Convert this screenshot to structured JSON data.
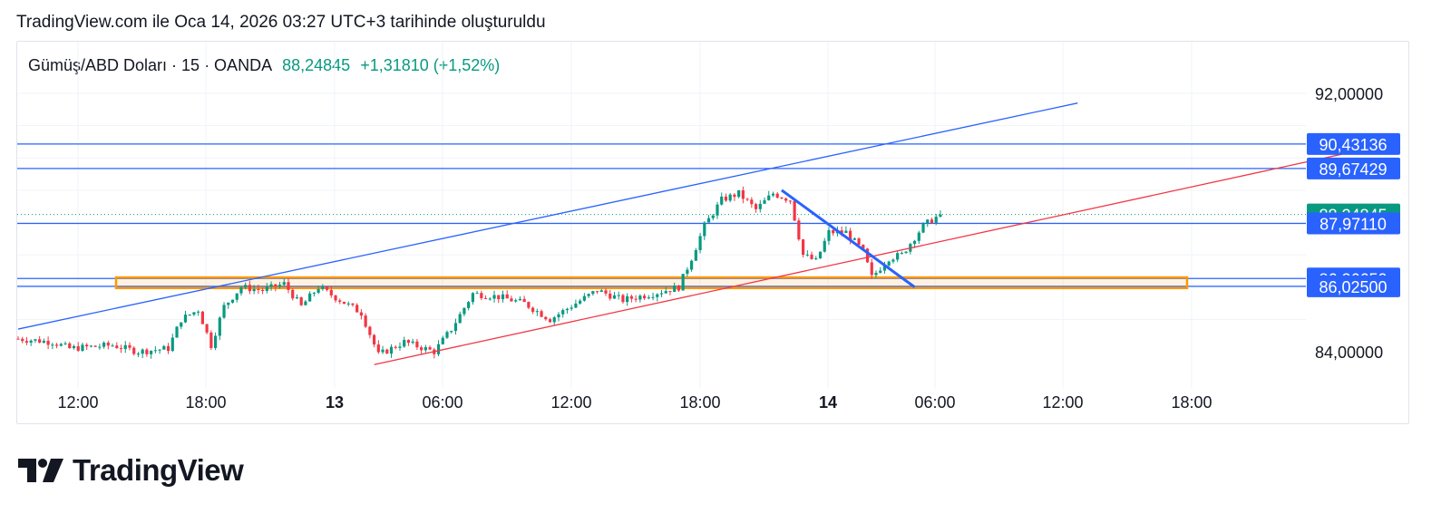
{
  "caption": "TradingView.com ile Oca 14, 2026 03:27 UTC+3 tarihinde oluşturuldu",
  "header": {
    "symbol": "Gümüş/ABD Doları · 15 · OANDA",
    "price": "88,24845",
    "change": "+1,31810 (+1,52%)"
  },
  "brand": {
    "name": "TradingView",
    "logo_icon": "tradingview-logo-icon"
  },
  "colors": {
    "up": "#089981",
    "down": "#f23645",
    "blue_line": "#2962ff",
    "red_line": "#f23645",
    "zone": "#ff9800",
    "grid": "#f0f3fa"
  },
  "chart_data": {
    "type": "candlestick",
    "ylim": [
      83.3,
      93.0
    ],
    "x_ticks": [
      {
        "label": "12:00",
        "bold": false
      },
      {
        "label": "18:00",
        "bold": false
      },
      {
        "label": "13",
        "bold": true
      },
      {
        "label": "06:00",
        "bold": false
      },
      {
        "label": "12:00",
        "bold": false
      },
      {
        "label": "18:00",
        "bold": false
      },
      {
        "label": "14",
        "bold": true
      },
      {
        "label": "06:00",
        "bold": false
      },
      {
        "label": "12:00",
        "bold": false
      },
      {
        "label": "18:00",
        "bold": false
      }
    ],
    "y_ticks": [
      "92,00000",
      "84,00000"
    ],
    "price_labels": [
      {
        "value": 90.43136,
        "text": "90,43136",
        "color": "#2962ff"
      },
      {
        "value": 89.67429,
        "text": "89,67429",
        "color": "#2962ff"
      },
      {
        "value": 88.24845,
        "text": "88,24845",
        "color": "#089981"
      },
      {
        "value": 87.9711,
        "text": "87,97110",
        "color": "#2962ff"
      },
      {
        "value": 86.2665,
        "text": "86,26650",
        "color": "#2962ff"
      },
      {
        "value": 86.025,
        "text": "86,02500",
        "color": "#2962ff"
      }
    ],
    "horizontal_lines": [
      90.43136,
      89.67429,
      87.9711,
      86.2665,
      86.025
    ],
    "current_price": 88.24845,
    "zone": {
      "top": 86.3,
      "bottom": 85.97
    },
    "trendlines": [
      {
        "kind": "upper-channel",
        "color": "#2962ff",
        "from_bar": 0,
        "from_price": 84.7,
        "to_bar": 247,
        "to_price": 91.7
      },
      {
        "kind": "lower-channel",
        "color": "#f23645",
        "from_bar": 83,
        "from_price": 83.6,
        "to_bar": 315,
        "to_price": 90.3
      },
      {
        "kind": "down-trend",
        "color": "#2962ff",
        "from_bar": 178,
        "from_price": 89.0,
        "to_bar": 209,
        "to_price": 86.0
      }
    ],
    "waypoints": [
      [
        0,
        84.4
      ],
      [
        8,
        84.3
      ],
      [
        12,
        84.1
      ],
      [
        22,
        84.2
      ],
      [
        28,
        84.0
      ],
      [
        35,
        84.1
      ],
      [
        38,
        85.0
      ],
      [
        42,
        85.3
      ],
      [
        45,
        84.2
      ],
      [
        48,
        85.4
      ],
      [
        52,
        86.0
      ],
      [
        57,
        85.9
      ],
      [
        62,
        86.1
      ],
      [
        66,
        85.4
      ],
      [
        70,
        86.0
      ],
      [
        75,
        85.6
      ],
      [
        80,
        85.2
      ],
      [
        84,
        83.9
      ],
      [
        90,
        84.3
      ],
      [
        97,
        84.0
      ],
      [
        101,
        84.7
      ],
      [
        106,
        85.8
      ],
      [
        112,
        85.7
      ],
      [
        118,
        85.5
      ],
      [
        124,
        85.0
      ],
      [
        130,
        85.5
      ],
      [
        135,
        85.9
      ],
      [
        141,
        85.6
      ],
      [
        148,
        85.8
      ],
      [
        154,
        86.0
      ],
      [
        157,
        86.9
      ],
      [
        160,
        87.9
      ],
      [
        164,
        88.7
      ],
      [
        168,
        88.9
      ],
      [
        172,
        88.4
      ],
      [
        176,
        88.9
      ],
      [
        180,
        88.7
      ],
      [
        183,
        87.0
      ],
      [
        186,
        86.8
      ],
      [
        189,
        87.7
      ],
      [
        193,
        87.7
      ],
      [
        197,
        87.1
      ],
      [
        199,
        86.3
      ],
      [
        203,
        86.9
      ],
      [
        206,
        87.0
      ],
      [
        211,
        87.9
      ],
      [
        215,
        88.25
      ]
    ]
  }
}
